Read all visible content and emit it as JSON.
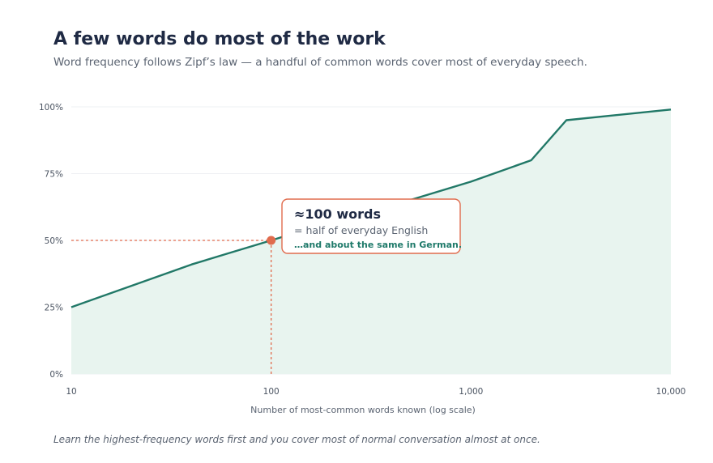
{
  "header": {
    "title": "A few words do most of the work",
    "subtitle": "Word frequency follows Zipf’s law — a handful of common words cover most of everyday speech."
  },
  "footnote": "Learn the highest-frequency words first and you cover most of normal conversation almost at once.",
  "colors": {
    "line": "#217867",
    "area": "#e8f4ef",
    "accent": "#e06b4d",
    "grid": "#eef0f3"
  },
  "chart_data": {
    "type": "area",
    "title": "A few words do most of the work",
    "subtitle": "Word frequency follows Zipf’s law — a handful of common words cover most of everyday speech.",
    "xlabel": "Number of most-common words known (log scale)",
    "ylabel": "",
    "x_scale": "log",
    "xlim": [
      10,
      10000
    ],
    "ylim": [
      0,
      100
    ],
    "x_ticks": [
      {
        "value": 10,
        "label": "10"
      },
      {
        "value": 100,
        "label": "100"
      },
      {
        "value": 1000,
        "label": "1,000"
      },
      {
        "value": 10000,
        "label": "10,000"
      }
    ],
    "y_ticks": [
      {
        "value": 0,
        "label": "0%"
      },
      {
        "value": 25,
        "label": "25%"
      },
      {
        "value": 50,
        "label": "50%"
      },
      {
        "value": 75,
        "label": "75%"
      },
      {
        "value": 100,
        "label": "100%"
      }
    ],
    "grid": true,
    "series": [
      {
        "x": [
          10,
          20,
          40,
          60,
          100,
          200,
          400,
          1000,
          2000,
          3000,
          10000
        ],
        "y": [
          25,
          33,
          41,
          45,
          50,
          57,
          63,
          72,
          80,
          95,
          99
        ]
      }
    ],
    "highlight": {
      "x": 100,
      "y": 50
    },
    "annotation": {
      "title": "≈100 words",
      "subtitle": "= half of everyday English",
      "note": "…and about the same in German."
    }
  }
}
